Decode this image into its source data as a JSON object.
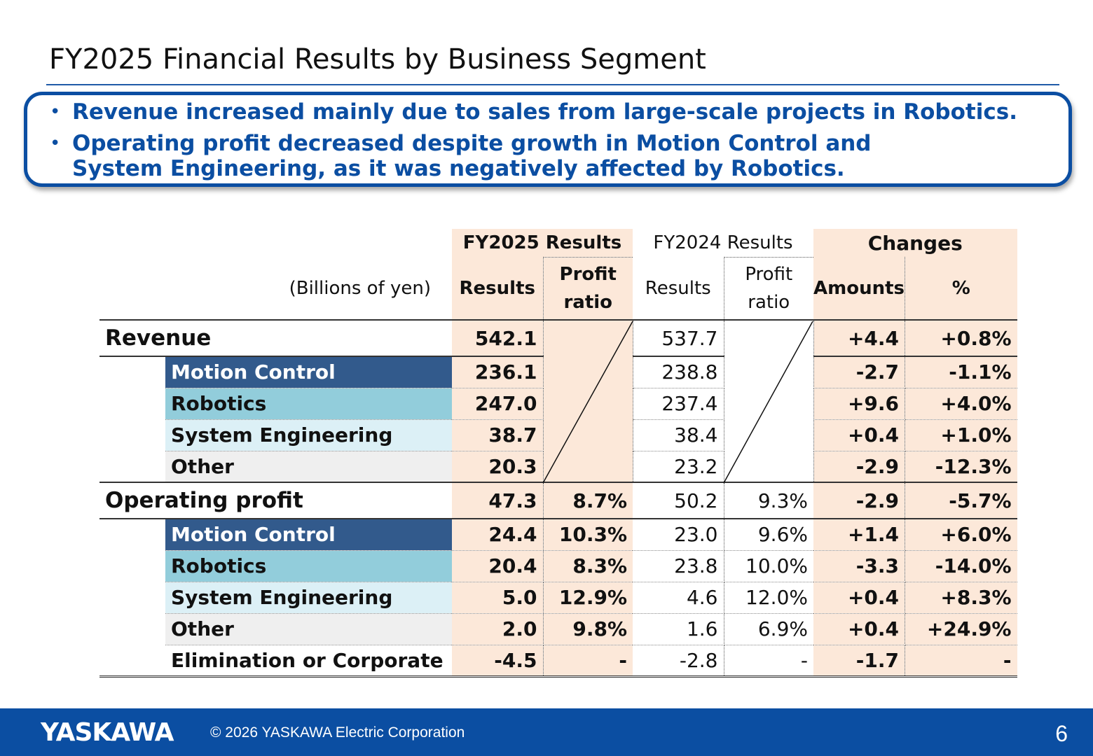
{
  "title": "FY2025 Financial Results by Business Segment",
  "summary": [
    "Revenue increased mainly due to sales from large-scale projects in Robotics.",
    "Operating profit decreased despite growth in Motion Control and System Engineering, as it was negatively affected by Robotics."
  ],
  "bullet_symbol": "•",
  "table": {
    "units": "(Billions of yen)",
    "group_headers": {
      "fy2025": "FY2025 Results",
      "fy2024": "FY2024 Results",
      "changes": "Changes"
    },
    "sub_headers": {
      "results": "Results",
      "profit_ratio_1": "Profit",
      "profit_ratio_2": "ratio",
      "amounts": "Amounts",
      "percent": "%"
    },
    "revenue": {
      "label": "Revenue",
      "fy25": "542.1",
      "fy24": "537.7",
      "amount": "+4.4",
      "pct": "+0.8%",
      "segments": [
        {
          "label": "Motion Control",
          "fy25": "236.1",
          "fy24": "238.8",
          "amount": "-2.7",
          "pct": "-1.1%"
        },
        {
          "label": "Robotics",
          "fy25": "247.0",
          "fy24": "237.4",
          "amount": "+9.6",
          "pct": "+4.0%"
        },
        {
          "label": "System Engineering",
          "fy25": "38.7",
          "fy24": "38.4",
          "amount": "+0.4",
          "pct": "+1.0%"
        },
        {
          "label": "Other",
          "fy25": "20.3",
          "fy24": "23.2",
          "amount": "-2.9",
          "pct": "-12.3%"
        }
      ]
    },
    "operating_profit": {
      "label": "Operating profit",
      "fy25": "47.3",
      "fy25_ratio": "8.7%",
      "fy24": "50.2",
      "fy24_ratio": "9.3%",
      "amount": "-2.9",
      "pct": "-5.7%",
      "segments": [
        {
          "label": "Motion Control",
          "fy25": "24.4",
          "fy25_ratio": "10.3%",
          "fy24": "23.0",
          "fy24_ratio": "9.6%",
          "amount": "+1.4",
          "pct": "+6.0%"
        },
        {
          "label": "Robotics",
          "fy25": "20.4",
          "fy25_ratio": "8.3%",
          "fy24": "23.8",
          "fy24_ratio": "10.0%",
          "amount": "-3.3",
          "pct": "-14.0%"
        },
        {
          "label": "System Engineering",
          "fy25": "5.0",
          "fy25_ratio": "12.9%",
          "fy24": "4.6",
          "fy24_ratio": "12.0%",
          "amount": "+0.4",
          "pct": "+8.3%"
        },
        {
          "label": "Other",
          "fy25": "2.0",
          "fy25_ratio": "9.8%",
          "fy24": "1.6",
          "fy24_ratio": "6.9%",
          "amount": "+0.4",
          "pct": "+24.9%"
        },
        {
          "label": "Elimination or Corporate",
          "fy25": "-4.5",
          "fy25_ratio": "-",
          "fy24": "-2.8",
          "fy24_ratio": "-",
          "amount": "-1.7",
          "pct": "-"
        }
      ]
    }
  },
  "footer": {
    "logo": "YASKAWA",
    "copyright": "© 2026 YASKAWA Electric Corporation",
    "page_number": "6"
  },
  "colors": {
    "brand_blue": "#0b4ea2",
    "peach": "#fce8d9",
    "motion_control": "#325a8c",
    "robotics": "#92cddb",
    "system_engineering": "#dcf0f6",
    "other": "#efefef"
  }
}
